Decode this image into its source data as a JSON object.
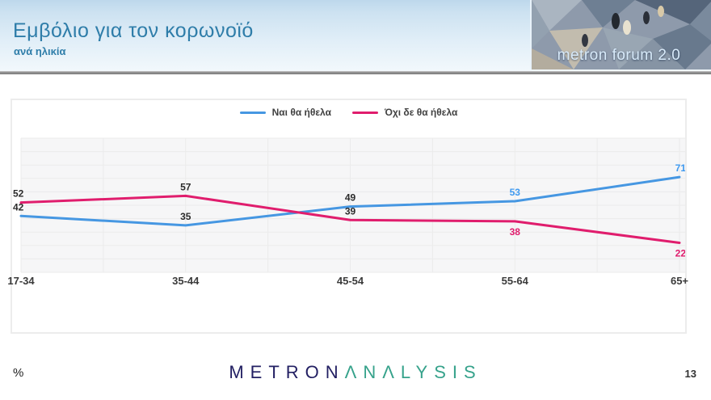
{
  "header": {
    "title": "Εμβόλιο για τον κορωνοϊό",
    "subtitle": "ανά ηλικία"
  },
  "logo": {
    "text": "metron forum 2.0"
  },
  "chart_data": {
    "type": "line",
    "categories": [
      "17-34",
      "35-44",
      "45-54",
      "55-64",
      "65+"
    ],
    "series": [
      {
        "name": "Ναι θα ήθελα",
        "color": "#4697e2",
        "values": [
          42,
          35,
          49,
          53,
          71
        ],
        "label_colors": [
          "#2b2b2b",
          "#2b2b2b",
          "#2b2b2b",
          "#3f9af0",
          "#3f9af0"
        ],
        "label_positions": [
          "above",
          "above",
          "above",
          "above",
          "above"
        ]
      },
      {
        "name": "Όχι δε θα ήθελα",
        "color": "#e01d6d",
        "values": [
          52,
          57,
          39,
          38,
          22
        ],
        "label_colors": [
          "#2b2b2b",
          "#2b2b2b",
          "#2b2b2b",
          "#e01d6d",
          "#e01d6d"
        ],
        "label_positions": [
          "above",
          "above",
          "above",
          "below",
          "below"
        ]
      }
    ],
    "title": "",
    "xlabel": "",
    "ylabel": "",
    "ylim": [
      0,
      100
    ],
    "grid": true,
    "legend_position": "top-center",
    "plot_bg": "#f6f6f7",
    "grid_color": "#ebebeb"
  },
  "footer": {
    "percent_label": "%",
    "brand_first": "METRON",
    "brand_second": "ΛNΛLYSIS",
    "page_number": "13"
  }
}
